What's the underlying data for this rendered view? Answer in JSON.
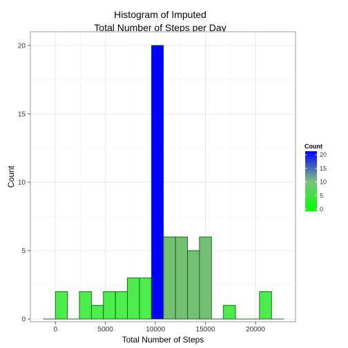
{
  "chart_data": {
    "type": "bar",
    "title_lines": [
      "Histogram of Imputed",
      "Total Number of Steps per Day"
    ],
    "xlabel": "Total Number of Steps",
    "ylabel": "Count",
    "xlim": [
      -2500,
      24000
    ],
    "ylim": [
      -0.2,
      21
    ],
    "x_ticks": [
      0,
      5000,
      10000,
      15000,
      20000
    ],
    "y_ticks": [
      0,
      5,
      10,
      15,
      20
    ],
    "grid": true,
    "legend": {
      "title": "Count",
      "position": "right",
      "ticks": [
        0,
        5,
        10,
        15,
        20
      ],
      "low_color": "#00ff00",
      "high_color": "#0000ff"
    },
    "bins": [
      {
        "start": -1200,
        "end": 0,
        "count": 0
      },
      {
        "start": 0,
        "end": 1200,
        "count": 2
      },
      {
        "start": 1200,
        "end": 2400,
        "count": 0
      },
      {
        "start": 2400,
        "end": 3600,
        "count": 2
      },
      {
        "start": 3600,
        "end": 4800,
        "count": 1
      },
      {
        "start": 4800,
        "end": 6000,
        "count": 2
      },
      {
        "start": 6000,
        "end": 7200,
        "count": 2
      },
      {
        "start": 7200,
        "end": 8400,
        "count": 3
      },
      {
        "start": 8400,
        "end": 9600,
        "count": 3
      },
      {
        "start": 9600,
        "end": 10800,
        "count": 20
      },
      {
        "start": 10800,
        "end": 12000,
        "count": 6
      },
      {
        "start": 12000,
        "end": 13200,
        "count": 6
      },
      {
        "start": 13200,
        "end": 14400,
        "count": 5
      },
      {
        "start": 14400,
        "end": 15600,
        "count": 6
      },
      {
        "start": 15600,
        "end": 16800,
        "count": 0
      },
      {
        "start": 16800,
        "end": 18000,
        "count": 1
      },
      {
        "start": 18000,
        "end": 19200,
        "count": 0
      },
      {
        "start": 19200,
        "end": 20400,
        "count": 0
      },
      {
        "start": 20400,
        "end": 21600,
        "count": 2
      },
      {
        "start": 21600,
        "end": 22800,
        "count": 0
      }
    ],
    "bar_colors": {
      "0": "#00ff00",
      "1": "#4bec4b",
      "2": "#4bec4b",
      "3": "#4bec4b",
      "5": "#75bf75",
      "6": "#75bf75",
      "20": "#0000ff"
    },
    "bar_outline": "#006400"
  }
}
